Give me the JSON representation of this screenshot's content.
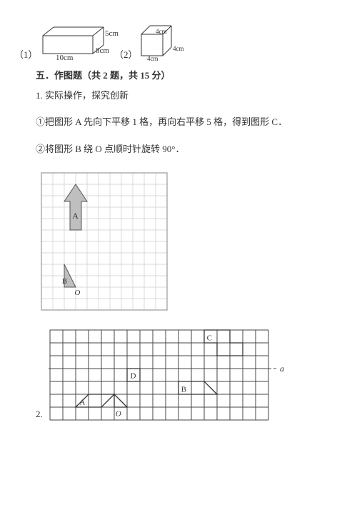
{
  "figures": {
    "cuboid": {
      "label_prefix": "（1）",
      "width_label": "10cm",
      "depth_label": "8cm",
      "height_label": "5cm",
      "stroke": "#333333"
    },
    "cube": {
      "label_prefix": "（2）",
      "edge_label_a": "4cm",
      "edge_label_b": "4cm",
      "edge_label_c": "4cm",
      "stroke": "#333333"
    }
  },
  "section": {
    "title": "五．作图题（共 2 题，共 15 分）"
  },
  "q1": {
    "intro": "1. 实际操作，探究创新",
    "part1": "①把图形 A 先向下平移 1 格，再向右平移 5 格，得到图形 C．",
    "part2": "②将图形 B 绕 O 点顺时针旋转 90°．"
  },
  "grid1": {
    "cols": 11,
    "rows": 12,
    "cell": 16,
    "border_color": "#999999",
    "grid_color": "#cccccc",
    "arrow_fill": "#bfbfbf",
    "arrow_label": "A",
    "tri_fill": "#bfbfbf",
    "tri_label": "B",
    "o_label": "O"
  },
  "q2": {
    "number": "2.",
    "cols": 17,
    "rows": 7,
    "cell": 18,
    "grid_color": "#444444",
    "dash_color": "#444444",
    "a_label": "a",
    "labels": {
      "A": "A",
      "B": "B",
      "C": "C",
      "D": "D",
      "O": "O"
    }
  }
}
